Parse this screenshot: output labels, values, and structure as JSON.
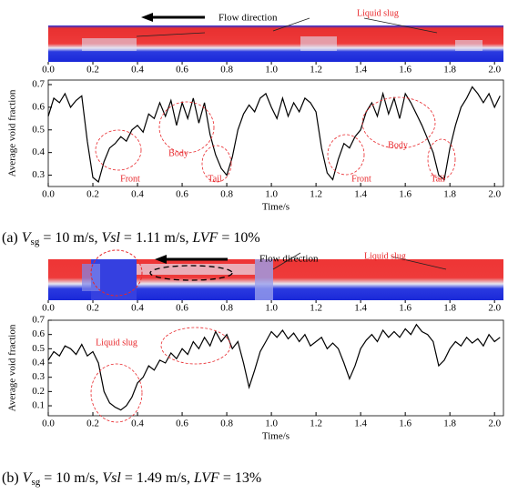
{
  "chart_data": [
    {
      "type": "line",
      "strip_annotations": [
        "Flow direction",
        "Liquid slug"
      ],
      "annotations": [
        "Front",
        "Body",
        "Tail",
        "Front",
        "Body",
        "Tail"
      ],
      "x_label": "Time/s",
      "y_label": "Average void fraction",
      "caption": [
        "(a) ",
        "V",
        "sg",
        " = 10 m/s, ",
        "Vsl",
        " = 1.11 m/s, ",
        "LVF",
        " = 10%"
      ],
      "xlim": [
        0,
        2.04
      ],
      "ylim": [
        0.25,
        0.72
      ],
      "xticks": [
        {
          "value": 0,
          "label": "0.0"
        },
        0.2,
        0.4,
        0.6,
        0.8,
        {
          "value": 1,
          "label": "1.0"
        },
        1.2,
        1.4,
        1.6,
        1.8,
        {
          "value": 2,
          "label": "2.0"
        }
      ],
      "yticks": [
        0.3,
        0.4,
        0.5,
        0.6,
        0.7
      ],
      "color": "#000000",
      "x": [
        0,
        0.025,
        0.05,
        0.075,
        0.1,
        0.125,
        0.15,
        0.175,
        0.2,
        0.225,
        0.25,
        0.275,
        0.3,
        0.325,
        0.35,
        0.375,
        0.4,
        0.425,
        0.45,
        0.475,
        0.5,
        0.525,
        0.55,
        0.575,
        0.6,
        0.625,
        0.65,
        0.675,
        0.7,
        0.725,
        0.75,
        0.775,
        0.8,
        0.825,
        0.85,
        0.875,
        0.9,
        0.925,
        0.95,
        0.975,
        1.0,
        1.025,
        1.05,
        1.075,
        1.1,
        1.125,
        1.15,
        1.175,
        1.2,
        1.225,
        1.25,
        1.275,
        1.3,
        1.325,
        1.35,
        1.375,
        1.4,
        1.425,
        1.45,
        1.475,
        1.5,
        1.525,
        1.55,
        1.575,
        1.6,
        1.625,
        1.65,
        1.675,
        1.7,
        1.725,
        1.75,
        1.775,
        1.8,
        1.825,
        1.85,
        1.875,
        1.9,
        1.925,
        1.95,
        1.975,
        2.0,
        2.025
      ],
      "values": [
        0.56,
        0.64,
        0.62,
        0.66,
        0.6,
        0.63,
        0.65,
        0.45,
        0.29,
        0.27,
        0.36,
        0.42,
        0.44,
        0.47,
        0.45,
        0.5,
        0.52,
        0.49,
        0.57,
        0.55,
        0.62,
        0.56,
        0.63,
        0.52,
        0.62,
        0.55,
        0.64,
        0.53,
        0.62,
        0.48,
        0.39,
        0.33,
        0.3,
        0.38,
        0.5,
        0.57,
        0.61,
        0.58,
        0.64,
        0.66,
        0.6,
        0.55,
        0.64,
        0.56,
        0.62,
        0.58,
        0.64,
        0.62,
        0.58,
        0.42,
        0.31,
        0.28,
        0.37,
        0.44,
        0.42,
        0.47,
        0.5,
        0.58,
        0.62,
        0.56,
        0.66,
        0.57,
        0.64,
        0.55,
        0.66,
        0.62,
        0.57,
        0.52,
        0.46,
        0.4,
        0.3,
        0.28,
        0.42,
        0.52,
        0.6,
        0.64,
        0.69,
        0.66,
        0.62,
        0.66,
        0.6,
        0.65
      ]
    },
    {
      "type": "line",
      "strip_annotations": [
        "Flow direction",
        "Liquid slug"
      ],
      "annotations": [
        "Liquid slug"
      ],
      "x_label": "Time/s",
      "y_label": "Average void fraction",
      "caption": [
        "(b) ",
        "V",
        "sg",
        " = 10 m/s, ",
        "Vsl",
        " = 1.49 m/s, ",
        "LVF",
        " = 13%"
      ],
      "xlim": [
        0,
        2.04
      ],
      "ylim": [
        0.03,
        0.7
      ],
      "xticks": [
        {
          "value": 0,
          "label": "0.0"
        },
        0.2,
        0.4,
        0.6,
        0.8,
        {
          "value": 1,
          "label": "1.0"
        },
        1.2,
        1.4,
        1.6,
        1.8,
        {
          "value": 2,
          "label": "2.0"
        }
      ],
      "yticks": [
        0.1,
        0.2,
        0.3,
        0.4,
        0.5,
        0.6,
        0.7
      ],
      "color": "#000000",
      "x": [
        0,
        0.025,
        0.05,
        0.075,
        0.1,
        0.125,
        0.15,
        0.175,
        0.2,
        0.225,
        0.25,
        0.275,
        0.3,
        0.325,
        0.35,
        0.375,
        0.4,
        0.425,
        0.45,
        0.475,
        0.5,
        0.525,
        0.55,
        0.575,
        0.6,
        0.625,
        0.65,
        0.675,
        0.7,
        0.725,
        0.75,
        0.775,
        0.8,
        0.825,
        0.85,
        0.875,
        0.9,
        0.925,
        0.95,
        0.975,
        1.0,
        1.025,
        1.05,
        1.075,
        1.1,
        1.125,
        1.15,
        1.175,
        1.2,
        1.225,
        1.25,
        1.275,
        1.3,
        1.325,
        1.35,
        1.375,
        1.4,
        1.425,
        1.45,
        1.475,
        1.5,
        1.525,
        1.55,
        1.575,
        1.6,
        1.625,
        1.65,
        1.675,
        1.7,
        1.725,
        1.75,
        1.775,
        1.8,
        1.825,
        1.85,
        1.875,
        1.9,
        1.925,
        1.95,
        1.975,
        2.0,
        2.025
      ],
      "values": [
        0.42,
        0.48,
        0.45,
        0.52,
        0.5,
        0.46,
        0.53,
        0.45,
        0.48,
        0.4,
        0.2,
        0.12,
        0.09,
        0.07,
        0.1,
        0.16,
        0.26,
        0.3,
        0.38,
        0.35,
        0.42,
        0.4,
        0.47,
        0.43,
        0.5,
        0.46,
        0.55,
        0.5,
        0.58,
        0.52,
        0.62,
        0.55,
        0.6,
        0.5,
        0.55,
        0.4,
        0.23,
        0.35,
        0.48,
        0.55,
        0.62,
        0.58,
        0.63,
        0.57,
        0.61,
        0.55,
        0.6,
        0.52,
        0.55,
        0.58,
        0.5,
        0.54,
        0.5,
        0.4,
        0.29,
        0.38,
        0.5,
        0.56,
        0.6,
        0.55,
        0.63,
        0.58,
        0.62,
        0.58,
        0.64,
        0.6,
        0.67,
        0.62,
        0.6,
        0.55,
        0.38,
        0.42,
        0.5,
        0.55,
        0.52,
        0.58,
        0.54,
        0.57,
        0.52,
        0.6,
        0.55,
        0.58
      ]
    }
  ]
}
